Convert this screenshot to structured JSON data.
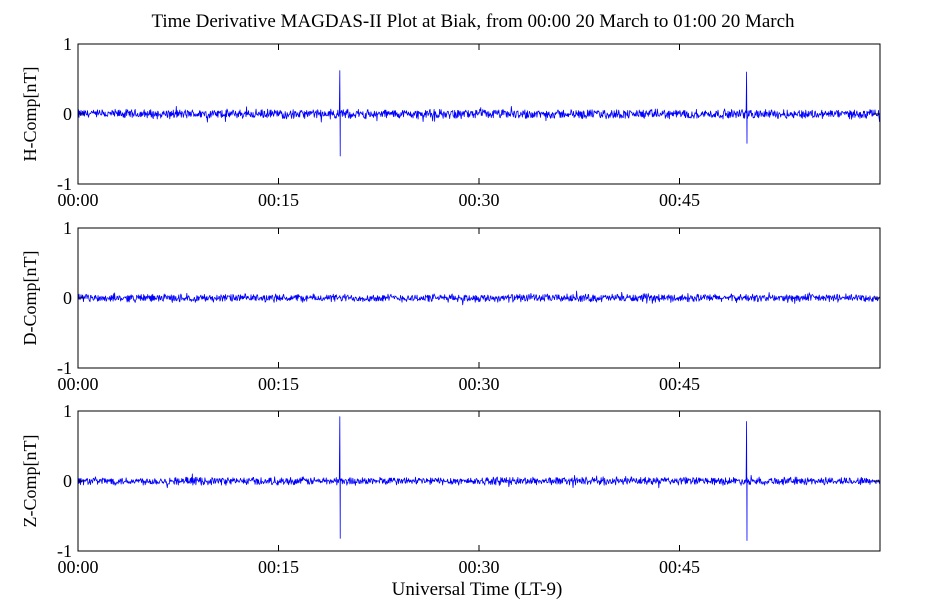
{
  "chart_data": {
    "type": "line",
    "title": "Time Derivative MAGDAS-II Plot at Biak, from 00:00 20 March to 01:00 20 March",
    "xlabel": "Universal Time (LT-9)",
    "x_range_minutes": [
      0,
      60
    ],
    "x_ticks": [
      {
        "label": "00:00",
        "minute": 0
      },
      {
        "label": "00:15",
        "minute": 15
      },
      {
        "label": "00:30",
        "minute": 30
      },
      {
        "label": "00:45",
        "minute": 45
      }
    ],
    "line_color": "#0000ff",
    "grid": false,
    "panels": [
      {
        "name": "H-Comp[nT]",
        "ylabel": "H-Comp[nT]",
        "ylim": [
          -1,
          1
        ],
        "yticks": [
          1,
          0,
          -1
        ],
        "noise_amplitude": 0.07,
        "spikes": [
          {
            "minute": 19.6,
            "up": 0.62,
            "down": -0.6
          },
          {
            "minute": 50.0,
            "up": 0.6,
            "down": -0.42
          }
        ]
      },
      {
        "name": "D-Comp[nT]",
        "ylabel": "D-Comp[nT]",
        "ylim": [
          -1,
          1
        ],
        "yticks": [
          1,
          0,
          -1
        ],
        "noise_amplitude": 0.06,
        "spikes": []
      },
      {
        "name": "Z-Comp[nT]",
        "ylabel": "Z-Comp[nT]",
        "ylim": [
          -1,
          1
        ],
        "yticks": [
          1,
          0,
          -1
        ],
        "noise_amplitude": 0.06,
        "spikes": [
          {
            "minute": 19.6,
            "up": 0.92,
            "down": -0.82
          },
          {
            "minute": 50.0,
            "up": 0.85,
            "down": -0.85
          }
        ]
      }
    ]
  }
}
